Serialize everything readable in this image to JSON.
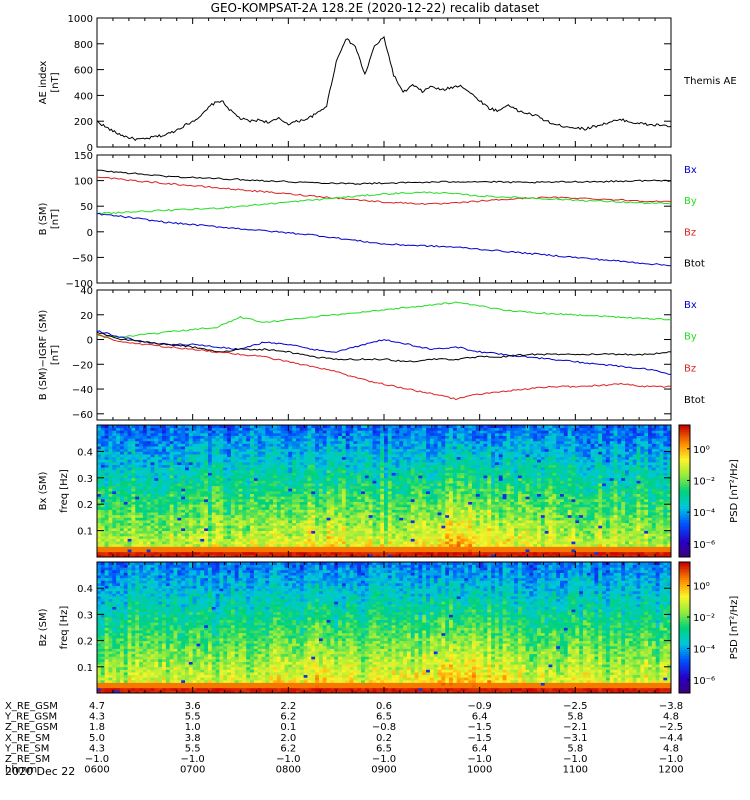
{
  "title": "GEO-KOMPSAT-2A 128.2E (2020-12-22) recalib dataset",
  "date_label": "2020 Dec 22",
  "colors": {
    "bx": "#0000cc",
    "by": "#22dd22",
    "bz": "#dd2222",
    "btot": "#000000"
  },
  "chart_data": [
    {
      "type": "line",
      "ylabel": "AE index",
      "unit": "[nT]",
      "ylim": [
        0,
        1000
      ],
      "yticks": [
        0,
        200,
        400,
        600,
        800,
        1000
      ],
      "legend": [
        "Themis AE"
      ],
      "x": [
        0,
        0.1,
        0.2,
        0.3,
        0.4,
        0.5,
        0.6,
        0.7,
        0.8,
        0.9,
        1.0,
        1.1,
        1.2,
        1.3,
        1.4,
        1.5,
        1.6,
        1.7,
        1.8,
        1.9,
        2.0,
        2.1,
        2.2,
        2.3,
        2.4,
        2.5,
        2.6,
        2.7,
        2.8,
        2.9,
        3.0,
        3.1,
        3.2,
        3.3,
        3.4,
        3.5,
        3.6,
        3.7,
        3.8,
        3.9,
        4.0,
        4.1,
        4.2,
        4.3,
        4.4,
        4.5,
        4.6,
        4.7,
        4.8,
        4.9,
        5.0,
        5.1,
        5.2,
        5.3,
        5.4,
        5.5,
        5.6,
        5.7,
        5.8,
        5.9,
        6.0
      ],
      "series": [
        {
          "name": "Themis AE",
          "color": "#000000",
          "values": [
            200,
            150,
            110,
            80,
            60,
            60,
            80,
            90,
            120,
            160,
            200,
            250,
            330,
            360,
            280,
            220,
            200,
            210,
            190,
            220,
            180,
            200,
            220,
            260,
            320,
            660,
            840,
            780,
            560,
            780,
            850,
            560,
            420,
            480,
            430,
            470,
            440,
            460,
            480,
            420,
            360,
            300,
            280,
            330,
            280,
            260,
            240,
            200,
            170,
            160,
            150,
            140,
            160,
            180,
            200,
            210,
            190,
            180,
            170,
            170,
            160
          ]
        }
      ]
    },
    {
      "type": "line",
      "ylabel": "B (SM)",
      "unit": "[nT]",
      "ylim": [
        -100,
        150
      ],
      "yticks": [
        -100,
        -50,
        0,
        50,
        100,
        150
      ],
      "legend": [
        "Bx",
        "By",
        "Bz",
        "Btot"
      ],
      "x": [
        0,
        0.25,
        0.5,
        0.75,
        1.0,
        1.25,
        1.5,
        1.75,
        2.0,
        2.25,
        2.5,
        2.75,
        3.0,
        3.25,
        3.5,
        3.75,
        4.0,
        4.25,
        4.5,
        4.75,
        5.0,
        5.25,
        5.5,
        5.75,
        6.0
      ],
      "series": [
        {
          "name": "Btot",
          "color": "#000000",
          "values": [
            120,
            116,
            112,
            108,
            106,
            104,
            102,
            100,
            98,
            96,
            95,
            94,
            95,
            96,
            97,
            98,
            98,
            97,
            96,
            97,
            98,
            98,
            99,
            100,
            100
          ]
        },
        {
          "name": "Bz",
          "color": "#dd2222",
          "values": [
            108,
            102,
            98,
            94,
            90,
            86,
            82,
            78,
            74,
            70,
            66,
            62,
            58,
            56,
            54,
            56,
            60,
            63,
            66,
            67,
            66,
            64,
            62,
            60,
            58
          ]
        },
        {
          "name": "By",
          "color": "#22dd22",
          "values": [
            36,
            38,
            40,
            42,
            44,
            46,
            50,
            54,
            58,
            62,
            66,
            70,
            74,
            76,
            77,
            74,
            70,
            68,
            66,
            64,
            62,
            60,
            58,
            56,
            55
          ]
        },
        {
          "name": "Bx",
          "color": "#0000cc",
          "values": [
            35,
            30,
            24,
            18,
            14,
            10,
            6,
            2,
            -2,
            -6,
            -12,
            -18,
            -24,
            -26,
            -28,
            -30,
            -34,
            -38,
            -42,
            -46,
            -50,
            -54,
            -58,
            -62,
            -66
          ]
        }
      ]
    },
    {
      "type": "line",
      "ylabel": "B (SM)−IGRF (SM)",
      "unit": "[nT]",
      "ylim": [
        -65,
        40
      ],
      "yticks": [
        -60,
        -40,
        -20,
        0,
        20,
        40
      ],
      "legend": [
        "Bx",
        "By",
        "Bz",
        "Btot"
      ],
      "x": [
        0,
        0.25,
        0.5,
        0.75,
        1.0,
        1.25,
        1.5,
        1.75,
        2.0,
        2.25,
        2.5,
        2.75,
        3.0,
        3.25,
        3.5,
        3.75,
        4.0,
        4.25,
        4.5,
        4.75,
        5.0,
        5.25,
        5.5,
        5.75,
        6.0
      ],
      "series": [
        {
          "name": "By",
          "color": "#22dd22",
          "values": [
            3,
            2,
            4,
            6,
            8,
            10,
            18,
            14,
            16,
            18,
            20,
            22,
            24,
            26,
            28,
            30,
            27,
            24,
            22,
            21,
            20,
            19,
            18,
            17,
            16
          ]
        },
        {
          "name": "Bx",
          "color": "#0000cc",
          "values": [
            7,
            2,
            -2,
            -4,
            -4,
            -6,
            -8,
            -2,
            -4,
            -8,
            -10,
            -5,
            0,
            -4,
            -8,
            -6,
            -10,
            -12,
            -14,
            -16,
            -18,
            -20,
            -22,
            -24,
            -28
          ]
        },
        {
          "name": "Btot",
          "color": "#000000",
          "values": [
            6,
            0,
            -2,
            -4,
            -6,
            -10,
            -8,
            -8,
            -10,
            -14,
            -16,
            -16,
            -16,
            -18,
            -16,
            -16,
            -14,
            -14,
            -12,
            -12,
            -12,
            -12,
            -12,
            -12,
            -10
          ]
        },
        {
          "name": "Bz",
          "color": "#dd2222",
          "values": [
            4,
            -2,
            -4,
            -6,
            -8,
            -10,
            -12,
            -14,
            -18,
            -22,
            -26,
            -32,
            -36,
            -40,
            -44,
            -48,
            -44,
            -42,
            -40,
            -38,
            -38,
            -37,
            -36,
            -38,
            -38
          ]
        }
      ]
    },
    {
      "type": "heatmap",
      "component": "Bx (SM)",
      "ylabel": "freq",
      "unit": "[Hz]",
      "ylim": [
        0,
        0.5
      ],
      "yticks": [
        0.1,
        0.2,
        0.3,
        0.4
      ],
      "colorbar_label": "PSD",
      "colorbar_unit": "[nT²/Hz]",
      "colorbar_ticks": [
        "10⁰",
        "10⁻²",
        "10⁻⁴",
        "10⁻⁶"
      ]
    },
    {
      "type": "heatmap",
      "component": "Bz (SM)",
      "ylabel": "freq",
      "unit": "[Hz]",
      "ylim": [
        0,
        0.5
      ],
      "yticks": [
        0.1,
        0.2,
        0.3,
        0.4
      ],
      "colorbar_label": "PSD",
      "colorbar_unit": "[nT²/Hz]",
      "colorbar_ticks": [
        "10⁰",
        "10⁻²",
        "10⁻⁴",
        "10⁻⁶"
      ]
    }
  ],
  "ephemeris": {
    "rows": [
      {
        "label": "X_RE_GSM",
        "values": [
          "4.7",
          "3.6",
          "2.2",
          "0.6",
          "−0.9",
          "−2.5",
          "−3.8"
        ]
      },
      {
        "label": "Y_RE_GSM",
        "values": [
          "4.3",
          "5.5",
          "6.2",
          "6.5",
          "6.4",
          "5.8",
          "4.8"
        ]
      },
      {
        "label": "Z_RE_GSM",
        "values": [
          "1.8",
          "1.0",
          "0.1",
          "−0.8",
          "−1.5",
          "−2.1",
          "−2.5"
        ]
      },
      {
        "label": "X_RE_SM",
        "values": [
          "5.0",
          "3.8",
          "2.0",
          "0.2",
          "−1.5",
          "−3.1",
          "−4.4"
        ]
      },
      {
        "label": "Y_RE_SM",
        "values": [
          "4.3",
          "5.5",
          "6.2",
          "6.5",
          "6.4",
          "5.8",
          "4.8"
        ]
      },
      {
        "label": "Z_RE_SM",
        "values": [
          "−1.0",
          "−1.0",
          "−1.0",
          "−1.0",
          "−1.0",
          "−1.0",
          "−1.0"
        ]
      },
      {
        "label": "hhmm",
        "values": [
          "0600",
          "0700",
          "0800",
          "0900",
          "1000",
          "1100",
          "1200"
        ]
      }
    ]
  }
}
